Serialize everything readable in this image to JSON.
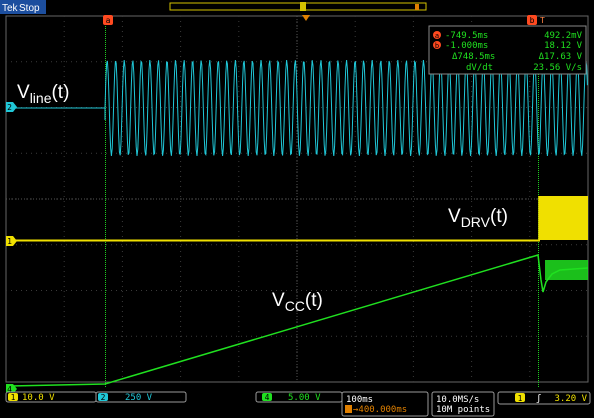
{
  "header": {
    "brand": "Tek",
    "run_state": "Stop"
  },
  "markers": {
    "cursor_a": "a",
    "cursor_b": "b",
    "trigger_label": "T"
  },
  "channel_markers": {
    "ch2": "2",
    "ch1": "1",
    "ch4": "4"
  },
  "readout": {
    "a_time": "-749.5ms",
    "a_value": "492.2mV",
    "b_time": "-1.000ms",
    "b_value": "18.12 V",
    "delta_time": "Δ748.5ms",
    "delta_value": "Δ17.63 V",
    "dvdt_label": "dV/dt",
    "dvdt_value": "23.56 V/s"
  },
  "labels": {
    "vline": {
      "main": "V",
      "sub": "line",
      "tail": "(t)"
    },
    "vdrv": {
      "main": "V",
      "sub": "DRV",
      "tail": "(t)"
    },
    "vcc": {
      "main": "V",
      "sub": "CC",
      "tail": "(t)"
    }
  },
  "status_bar": {
    "ch1": {
      "num": "1",
      "scale": "10.0 V"
    },
    "ch2": {
      "num": "2",
      "scale": "250 V"
    },
    "ch4": {
      "num": "4",
      "scale": "5.00 V"
    },
    "horizontal": {
      "timebase": "100ms",
      "position": "→400.000ms"
    },
    "acquisition": {
      "rate": "10.0MS/s",
      "points": "10M points"
    },
    "trigger": {
      "source": "1",
      "slope": "ʃ",
      "level": "3.20 V"
    }
  },
  "colors": {
    "ch1": "#f0e000",
    "ch2": "#20c8d8",
    "ch4": "#20e020",
    "cursor": "#ff4a20",
    "grid": "#5a5a5a"
  }
}
